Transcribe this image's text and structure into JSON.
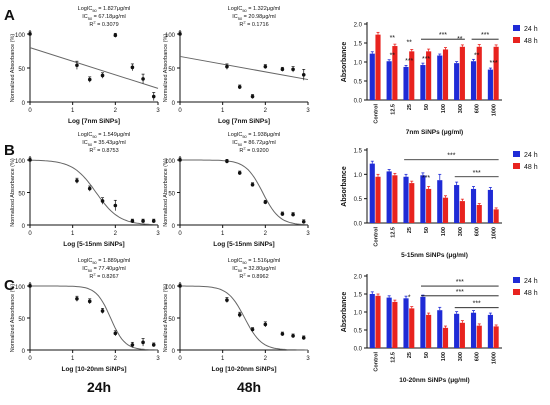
{
  "colors": {
    "line": "#666666",
    "point": "#111111",
    "bar24": "#1f2bd6",
    "bar48": "#e8231f"
  },
  "chart_data": [
    {
      "type": "scatter",
      "row": "A",
      "panel_label": "A",
      "time_label": "",
      "stats": [
        "LogIC50 = 1.827μg/ml",
        "IC50 = 67.18μg/ml",
        "R2 = 0.3079"
      ],
      "ylabel": "Normalized Absorbance (%)",
      "xlabel": "Log [7nm SiNPs]",
      "xlim": [
        0,
        3
      ],
      "ylim": [
        0,
        100
      ],
      "xticks": [
        0,
        1,
        2,
        3
      ],
      "yticks": [
        0,
        50,
        100
      ],
      "points": [
        [
          0,
          100,
          3
        ],
        [
          1.1,
          54,
          6
        ],
        [
          1.4,
          33,
          4
        ],
        [
          1.7,
          39,
          4
        ],
        [
          2.0,
          98,
          3
        ],
        [
          2.4,
          51,
          5
        ],
        [
          2.65,
          34,
          7
        ],
        [
          2.9,
          8,
          6
        ]
      ],
      "fit": "line",
      "fit_endpoints": [
        [
          0,
          80
        ],
        [
          3,
          20
        ]
      ]
    },
    {
      "type": "scatter",
      "row": "A",
      "panel_label": "",
      "time_label": "",
      "stats": [
        "LogIC50 = 1.322μg/ml",
        "IC50 = 20.98μg/ml",
        "R2 = 0.1716"
      ],
      "ylabel": "Normalized Absorbance (%)",
      "xlabel": "Log [7nm SiNPs]",
      "xlim": [
        0,
        3
      ],
      "ylim": [
        0,
        100
      ],
      "xticks": [
        0,
        1,
        2,
        3
      ],
      "yticks": [
        0,
        50,
        100
      ],
      "points": [
        [
          0,
          100,
          3
        ],
        [
          1.1,
          52,
          4
        ],
        [
          1.4,
          22,
          3
        ],
        [
          1.7,
          8,
          3
        ],
        [
          2.0,
          52,
          3
        ],
        [
          2.4,
          48,
          3
        ],
        [
          2.65,
          48,
          4
        ],
        [
          2.9,
          40,
          8
        ]
      ],
      "fit": "line",
      "fit_endpoints": [
        [
          0,
          67
        ],
        [
          3,
          33
        ]
      ]
    },
    {
      "type": "bar",
      "row": "A",
      "panel_label": "",
      "time_label": "",
      "ylabel": "Absorbance",
      "xlabel": "7nm SiNPs (μg/ml)",
      "categories": [
        "Control",
        "12.5",
        "25",
        "50",
        "100",
        "300",
        "600",
        "1000"
      ],
      "ylim": [
        0,
        2.0
      ],
      "yticks": [
        0.0,
        0.5,
        1.0,
        1.5,
        2.0
      ],
      "series": [
        {
          "name": "24 h",
          "values": [
            1.22,
            1.02,
            0.87,
            0.92,
            1.17,
            0.97,
            1.02,
            0.8
          ],
          "errors": [
            0.05,
            0.04,
            0.04,
            0.05,
            0.04,
            0.04,
            0.05,
            0.04
          ]
        },
        {
          "name": "48 h",
          "values": [
            1.72,
            1.42,
            1.28,
            1.28,
            1.33,
            1.4,
            1.4,
            1.4
          ],
          "errors": [
            0.06,
            0.05,
            0.05,
            0.06,
            0.05,
            0.05,
            0.06,
            0.05
          ]
        }
      ],
      "annotations": [
        {
          "text": "**",
          "at": "12.5",
          "level": 1.58
        },
        {
          "text": "**",
          "at": "25",
          "level": 1.46
        },
        {
          "text": "**",
          "at": "300",
          "level": 1.55
        },
        {
          "text": "**",
          "at": "12.5",
          "level": 1.12
        },
        {
          "text": "***",
          "at": "25",
          "level": 0.97
        },
        {
          "text": "***",
          "at": "50",
          "level": 1.02
        },
        {
          "text": "**",
          "at": "600",
          "level": 1.12
        },
        {
          "text": "***",
          "at": "1000",
          "level": 0.92
        }
      ],
      "brackets": [
        {
          "text": "***",
          "from": "50",
          "to": "300",
          "level": 1.6
        },
        {
          "text": "***",
          "from": "600",
          "to": "1000",
          "level": 1.6
        }
      ]
    },
    {
      "type": "scatter",
      "row": "B",
      "panel_label": "B",
      "time_label": "",
      "stats": [
        "LogIC50 = 1.549μg/ml",
        "IC50 = 35.43μg/ml",
        "R2 = 0.8753"
      ],
      "ylabel": "Normalized Absorbance (%)",
      "xlabel": "Log [5-15nm SiNPs]",
      "xlim": [
        0,
        3
      ],
      "ylim": [
        0,
        100
      ],
      "xticks": [
        0,
        1,
        2,
        3
      ],
      "yticks": [
        0,
        50,
        100
      ],
      "points": [
        [
          0,
          100,
          3
        ],
        [
          1.1,
          68,
          4
        ],
        [
          1.4,
          56,
          4
        ],
        [
          1.7,
          37,
          5
        ],
        [
          2.0,
          30,
          8
        ],
        [
          2.4,
          6,
          3
        ],
        [
          2.65,
          6,
          3
        ],
        [
          2.9,
          6,
          3
        ]
      ],
      "fit": "sigmoid",
      "fit_params": {
        "logic50": 1.549,
        "slope": 1.6
      }
    },
    {
      "type": "scatter",
      "row": "B",
      "panel_label": "",
      "time_label": "",
      "stats": [
        "LogIC50 = 1.938μg/ml",
        "IC50 = 86.72μg/ml",
        "R2 = 0.9200"
      ],
      "ylabel": "Normalized Absorbance (%)",
      "xlabel": "Log [5-15nm SiNPs]",
      "xlim": [
        0,
        3
      ],
      "ylim": [
        0,
        100
      ],
      "xticks": [
        0,
        1,
        2,
        3
      ],
      "yticks": [
        0,
        50,
        100
      ],
      "points": [
        [
          0,
          100,
          3
        ],
        [
          1.1,
          98,
          3
        ],
        [
          1.4,
          80,
          3
        ],
        [
          1.7,
          62,
          3
        ],
        [
          2.0,
          35,
          3
        ],
        [
          2.4,
          17,
          3
        ],
        [
          2.65,
          16,
          3
        ],
        [
          2.9,
          5,
          3
        ]
      ],
      "fit": "sigmoid",
      "fit_params": {
        "logic50": 1.938,
        "slope": 2.2
      }
    },
    {
      "type": "bar",
      "row": "B",
      "panel_label": "",
      "time_label": "",
      "ylabel": "Absorbance",
      "xlabel": "5-15nm SiNPs (μg/ml)",
      "categories": [
        "Control",
        "12.5",
        "25",
        "50",
        "100",
        "300",
        "600",
        "1000"
      ],
      "ylim": [
        0,
        1.5
      ],
      "yticks": [
        0.0,
        0.5,
        1.0,
        1.5
      ],
      "series": [
        {
          "name": "24 h",
          "values": [
            1.22,
            1.06,
            0.95,
            0.98,
            0.88,
            0.78,
            0.7,
            0.68
          ],
          "errors": [
            0.05,
            0.04,
            0.05,
            0.05,
            0.12,
            0.06,
            0.05,
            0.05
          ]
        },
        {
          "name": "48 h",
          "values": [
            0.95,
            0.98,
            0.82,
            0.7,
            0.52,
            0.45,
            0.37,
            0.28
          ],
          "errors": [
            0.05,
            0.04,
            0.04,
            0.05,
            0.04,
            0.04,
            0.03,
            0.03
          ]
        }
      ],
      "annotations": [
        {
          "text": "***",
          "at": "50",
          "level": 0.88
        }
      ],
      "brackets": [
        {
          "text": "***",
          "from": "25",
          "to": "1000",
          "level": 1.3
        },
        {
          "text": "***",
          "from": "300",
          "to": "1000",
          "level": 0.95
        }
      ]
    },
    {
      "type": "scatter",
      "row": "C",
      "panel_label": "C",
      "time_label": "24h",
      "stats": [
        "LogIC50 = 1.889μg/ml",
        "IC50 = 77.40μg/ml",
        "R2 = 0.8267"
      ],
      "ylabel": "Normalized Absorbance (%)",
      "xlabel": "Log [10-20nm SiNPs]",
      "xlim": [
        0,
        3
      ],
      "ylim": [
        0,
        100
      ],
      "xticks": [
        0,
        1,
        2,
        3
      ],
      "yticks": [
        0,
        50,
        100
      ],
      "points": [
        [
          0,
          100,
          3
        ],
        [
          1.1,
          80,
          4
        ],
        [
          1.4,
          76,
          4
        ],
        [
          1.7,
          61,
          4
        ],
        [
          2.0,
          26,
          4
        ],
        [
          2.4,
          8,
          4
        ],
        [
          2.65,
          12,
          6
        ],
        [
          2.9,
          8,
          3
        ]
      ],
      "fit": "sigmoid",
      "fit_params": {
        "logic50": 1.889,
        "slope": 2.6
      }
    },
    {
      "type": "scatter",
      "row": "C",
      "panel_label": "",
      "time_label": "48h",
      "stats": [
        "LogIC50 = 1.516μg/ml",
        "IC50 = 32.80μg/ml",
        "R2 = 0.8962"
      ],
      "ylabel": "Normalized Absorbance (%)",
      "xlabel": "Log [10-20nm SiNPs]",
      "xlim": [
        0,
        3
      ],
      "ylim": [
        0,
        100
      ],
      "xticks": [
        0,
        1,
        2,
        3
      ],
      "yticks": [
        0,
        50,
        100
      ],
      "points": [
        [
          0,
          100,
          3
        ],
        [
          1.1,
          78,
          4
        ],
        [
          1.4,
          55,
          4
        ],
        [
          1.7,
          32,
          3
        ],
        [
          2.0,
          40,
          4
        ],
        [
          2.4,
          25,
          3
        ],
        [
          2.65,
          22,
          3
        ],
        [
          2.9,
          19,
          3
        ]
      ],
      "fit": "sigmoid",
      "fit_params": {
        "logic50": 1.516,
        "slope": 2.2
      }
    },
    {
      "type": "bar",
      "row": "C",
      "panel_label": "",
      "time_label": "",
      "ylabel": "Absorbance",
      "xlabel": "10-20nm SiNPs (μg/ml)",
      "categories": [
        "Control",
        "12.5",
        "25",
        "50",
        "100",
        "300",
        "600",
        "1000"
      ],
      "ylim": [
        0,
        2.0
      ],
      "yticks": [
        0.0,
        0.5,
        1.0,
        1.5,
        2.0
      ],
      "series": [
        {
          "name": "24 h",
          "values": [
            1.5,
            1.4,
            1.38,
            1.42,
            1.05,
            0.95,
            0.98,
            0.92
          ],
          "errors": [
            0.06,
            0.05,
            0.06,
            0.05,
            0.08,
            0.06,
            0.06,
            0.05
          ]
        },
        {
          "name": "48 h",
          "values": [
            1.45,
            1.28,
            1.1,
            0.92,
            0.56,
            0.7,
            0.62,
            0.6
          ],
          "errors": [
            0.05,
            0.05,
            0.05,
            0.05,
            0.05,
            0.06,
            0.05,
            0.04
          ]
        }
      ],
      "annotations": [
        {
          "text": "*",
          "at": "25",
          "level": 1.35
        }
      ],
      "brackets": [
        {
          "text": "***",
          "from": "50",
          "to": "1000",
          "level": 1.72
        },
        {
          "text": "***",
          "from": "50",
          "to": "1000",
          "level": 1.45
        },
        {
          "text": "***",
          "from": "300",
          "to": "1000",
          "level": 1.12
        }
      ]
    }
  ]
}
